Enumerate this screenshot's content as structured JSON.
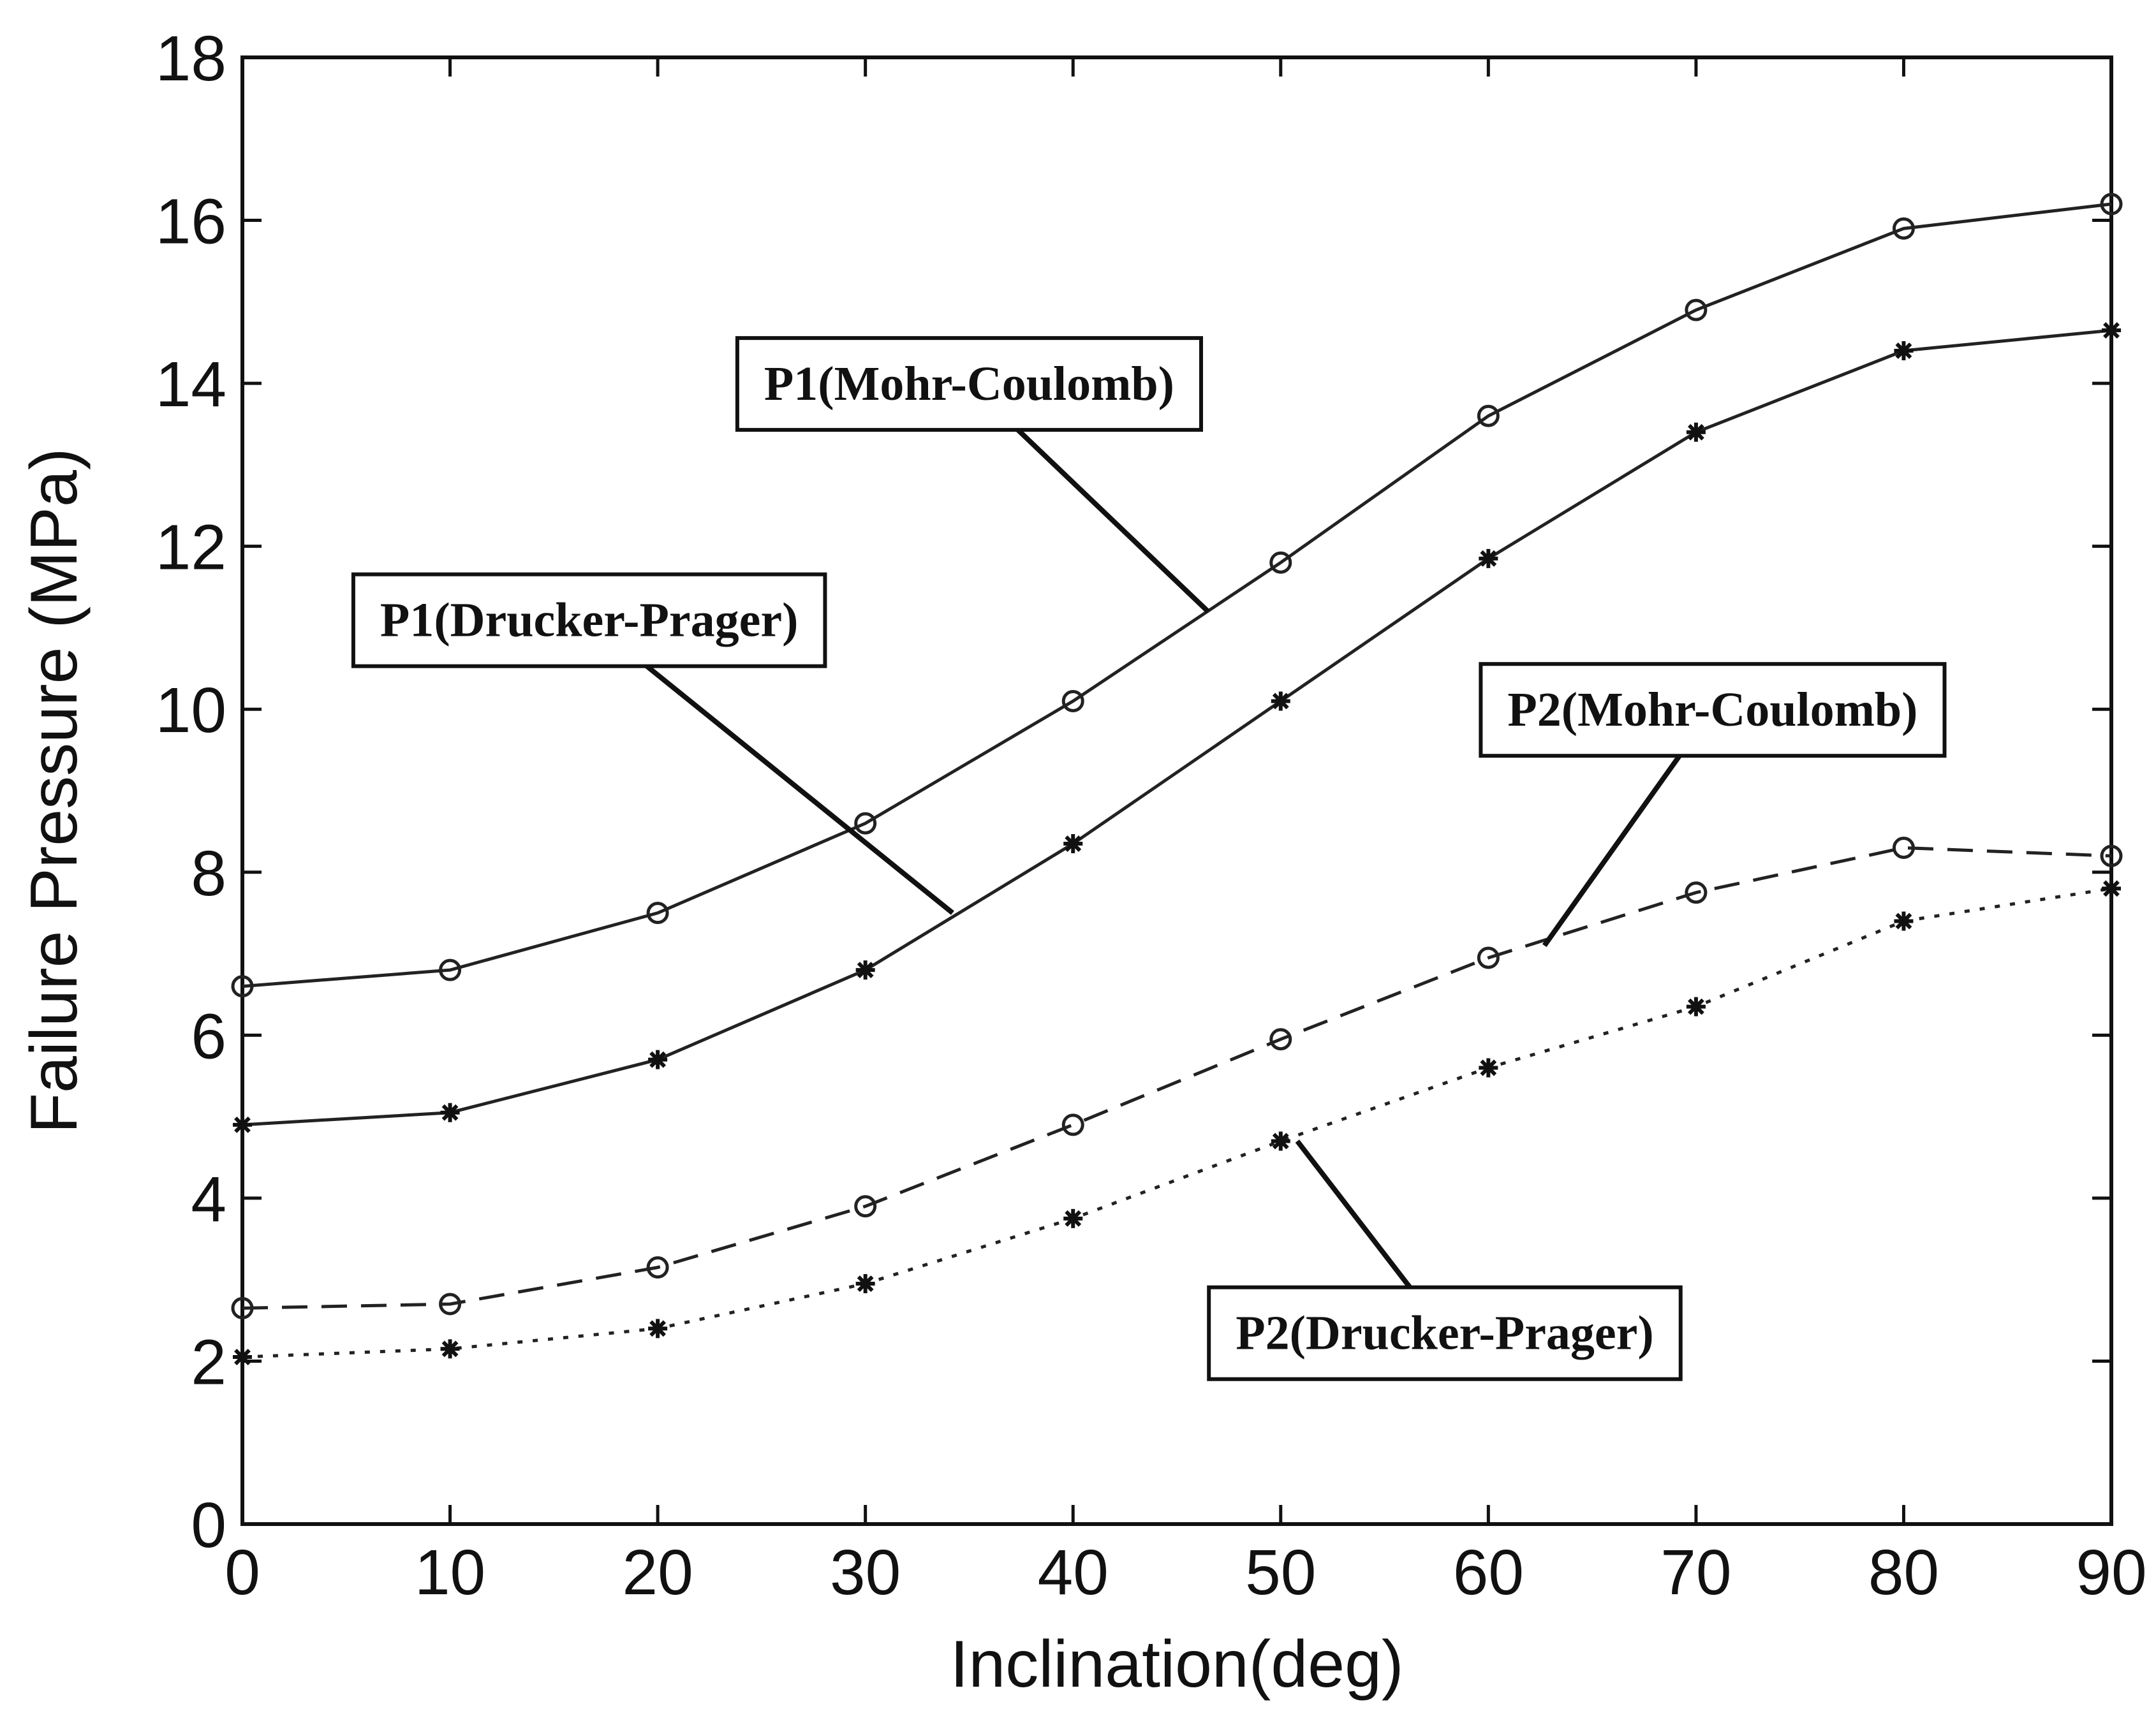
{
  "chart_data": {
    "type": "line",
    "title": "",
    "xlabel": "Inclination(deg)",
    "ylabel": "Failure Pressure (MPa)",
    "xlim": [
      0,
      90
    ],
    "ylim": [
      0,
      18
    ],
    "xticks": [
      0,
      10,
      20,
      30,
      40,
      50,
      60,
      70,
      80,
      90
    ],
    "yticks": [
      0,
      2,
      4,
      6,
      8,
      10,
      12,
      14,
      16,
      18
    ],
    "grid": false,
    "legend": "none",
    "x": [
      0,
      10,
      20,
      30,
      40,
      50,
      60,
      70,
      80,
      90
    ],
    "series": [
      {
        "name": "P1(Mohr-Coulomb)",
        "marker": "circle",
        "line_style": "solid",
        "values": [
          6.6,
          6.8,
          7.5,
          8.6,
          10.1,
          11.8,
          13.6,
          14.9,
          15.9,
          16.2
        ],
        "callout_text_at": [
          35,
          14.0
        ],
        "callout_pointer_at": [
          46.5,
          11.2
        ]
      },
      {
        "name": "P1(Drucker-Prager)",
        "marker": "star",
        "line_style": "solid",
        "values": [
          4.9,
          5.05,
          5.7,
          6.8,
          8.35,
          10.1,
          11.85,
          13.4,
          14.4,
          14.65
        ],
        "callout_text_at": [
          16.7,
          11.1
        ],
        "callout_pointer_at": [
          34.2,
          7.5
        ]
      },
      {
        "name": "P2(Mohr-Coulomb)",
        "marker": "circle",
        "line_style": "dashed",
        "values": [
          2.65,
          2.7,
          3.15,
          3.9,
          4.9,
          5.95,
          6.95,
          7.75,
          8.3,
          8.2
        ],
        "callout_text_at": [
          70.8,
          10.0
        ],
        "callout_pointer_at": [
          62.7,
          7.1
        ]
      },
      {
        "name": "P2(Drucker-Prager)",
        "marker": "star",
        "line_style": "dotted",
        "values": [
          2.05,
          2.15,
          2.4,
          2.95,
          3.75,
          4.7,
          5.6,
          6.35,
          7.4,
          7.8
        ],
        "callout_text_at": [
          57.9,
          2.35
        ],
        "callout_pointer_at": [
          50.8,
          4.7
        ]
      }
    ]
  }
}
